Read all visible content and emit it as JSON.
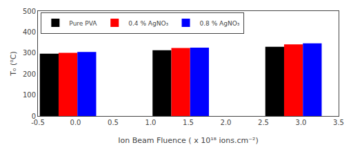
{
  "chart_data": {
    "type": "bar",
    "xlabel": "Ion Beam Fluence ( x 10¹⁸ ions.cm⁻²)",
    "ylabel": "Tₒ (⁰C)",
    "x": [
      -0.1,
      1.4,
      2.9
    ],
    "series": [
      {
        "name": "Pure PVA",
        "color": "black",
        "values": [
          297,
          313,
          330
        ]
      },
      {
        "name": "0.4 % AgNO₃",
        "color": "red",
        "values": [
          301,
          324,
          341
        ]
      },
      {
        "name": "0.8 % AgNO₃",
        "color": "blue",
        "values": [
          305,
          326,
          346
        ]
      }
    ],
    "xlim": [
      -0.5,
      3.5
    ],
    "xticks": [
      -0.5,
      {
        "value": 0,
        "label": "0.0"
      },
      0.5,
      {
        "value": 1,
        "label": "1.0"
      },
      1.5,
      {
        "value": 2,
        "label": "2.0"
      },
      2.5,
      {
        "value": 3,
        "label": "3.0"
      },
      3.5
    ],
    "ylim": [
      0,
      500
    ],
    "yticks": [
      0,
      100,
      200,
      300,
      400,
      500
    ],
    "grid": false,
    "legend": "upper left"
  }
}
